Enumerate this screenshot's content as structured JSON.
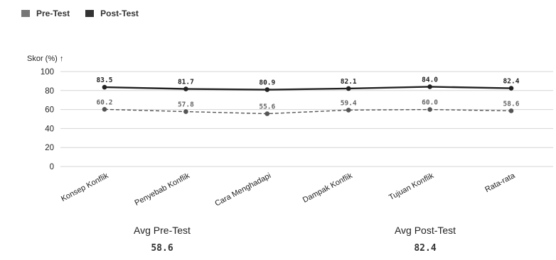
{
  "legend": {
    "pre_label": "Pre-Test",
    "post_label": "Post-Test"
  },
  "summary": {
    "pre_label": "Avg Pre-Test",
    "pre_value": "58.6",
    "post_label": "Avg Post-Test",
    "post_value": "82.4"
  },
  "colors": {
    "pre": "#555555",
    "post": "#222222",
    "grid": "#d4d4d4",
    "pre_swatch": "#777777",
    "post_swatch": "#333333"
  },
  "chart_data": {
    "type": "line",
    "title": "",
    "xlabel": "",
    "ylabel": "Skor (%) ↑",
    "ylim": [
      0,
      100
    ],
    "yticks": [
      0,
      20,
      40,
      60,
      80,
      100
    ],
    "grid": true,
    "legend_position": "top-left",
    "categories": [
      "Konsep Konflik",
      "Penyebab Konflik",
      "Cara Menghadapi",
      "Dampak Konflik",
      "Tujuan Konflik",
      "Rata-rata"
    ],
    "series": [
      {
        "name": "Pre-Test",
        "values": [
          60.2,
          57.8,
          55.6,
          59.4,
          60.0,
          58.6
        ],
        "labels": [
          "60.2",
          "57.8",
          "55.6",
          "59.4",
          "60.0",
          "58.6"
        ],
        "style": "dashed"
      },
      {
        "name": "Post-Test",
        "values": [
          83.5,
          81.7,
          80.9,
          82.1,
          84.0,
          82.4
        ],
        "labels": [
          "83.5",
          "81.7",
          "80.9",
          "82.1",
          "84.0",
          "82.4"
        ],
        "style": "solid"
      }
    ]
  }
}
